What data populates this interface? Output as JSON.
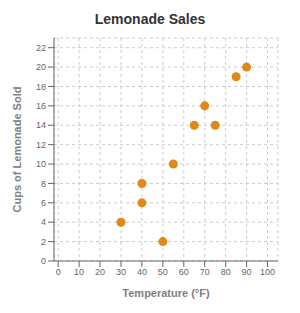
{
  "chart_data": {
    "type": "scatter",
    "title": "Lemonade Sales",
    "xlabel": "Temperature (°F)",
    "ylabel": "Cups of Lemonade Sold",
    "x": [
      30,
      40,
      40,
      50,
      55,
      65,
      70,
      75,
      85,
      90
    ],
    "values": [
      4,
      6,
      8,
      2,
      10,
      14,
      16,
      14,
      19,
      20
    ],
    "color": "#E08818",
    "xlim": [
      -2,
      105
    ],
    "ylim": [
      0,
      23
    ],
    "xticks": [
      0,
      10,
      20,
      30,
      40,
      50,
      60,
      70,
      80,
      90,
      100
    ],
    "yticks": [
      0,
      2,
      4,
      6,
      8,
      10,
      12,
      14,
      16,
      18,
      20,
      22
    ],
    "grid": true
  }
}
